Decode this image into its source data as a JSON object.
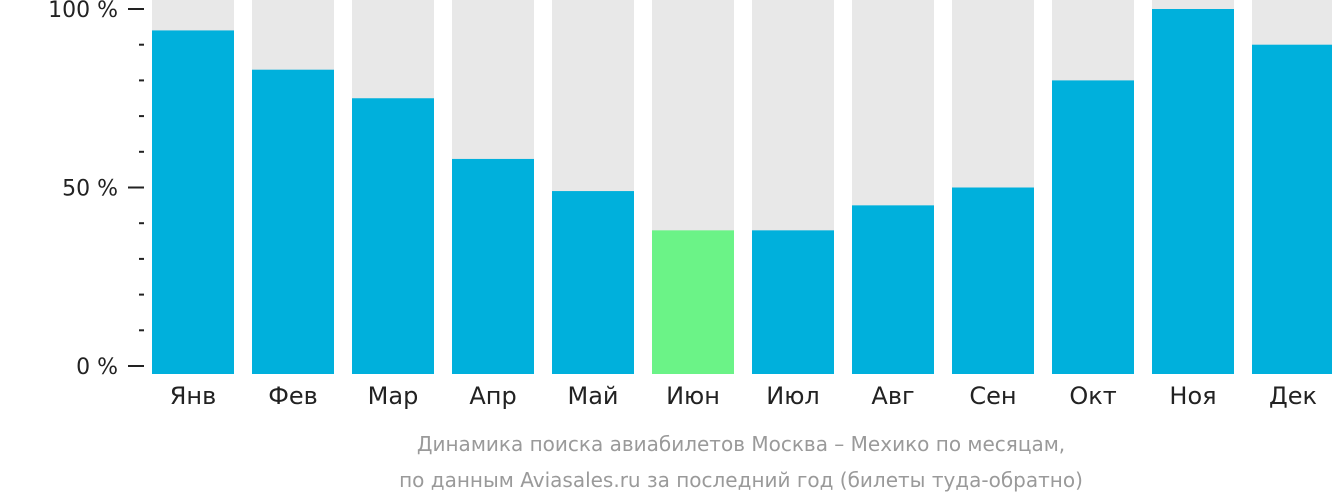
{
  "chart_data": {
    "type": "bar",
    "title": "",
    "xlabel": "",
    "ylabel": "",
    "ylim": [
      0,
      100
    ],
    "yticks": [
      {
        "value": 0,
        "label": "0 %"
      },
      {
        "value": 50,
        "label": "50 %"
      },
      {
        "value": 100,
        "label": "100 %"
      }
    ],
    "minor_ticks_step": 10,
    "categories": [
      "Янв",
      "Фев",
      "Мар",
      "Апр",
      "Май",
      "Июн",
      "Июл",
      "Авг",
      "Сен",
      "Окт",
      "Ноя",
      "Дек"
    ],
    "values": [
      94,
      83,
      75,
      58,
      49,
      38,
      38,
      45,
      50,
      80,
      100,
      90
    ],
    "highlight_index": 5,
    "colors": {
      "bar": "#00b0dc",
      "highlight": "#6bf387",
      "background_bar": "#e8e8e8",
      "axis": "#222222",
      "tick_label": "#222222"
    },
    "grid": false,
    "legend": "none"
  },
  "caption": {
    "line1": "Динамика поиска авиабилетов Москва – Мехико по месяцам,",
    "line2": "по данным Aviasales.ru за последний год (билеты туда-обратно)"
  }
}
